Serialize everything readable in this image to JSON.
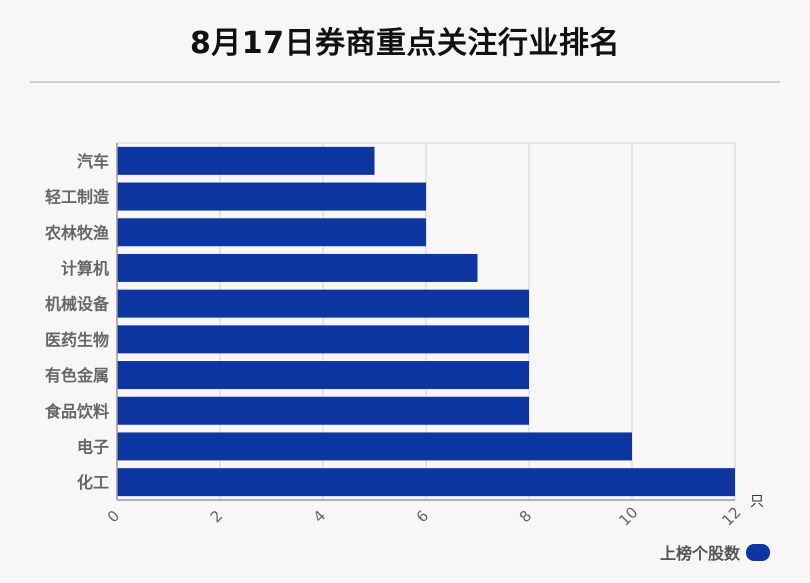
{
  "title": "8月17日券商重点关注行业排名",
  "colors": {
    "bar": "#0d36a0",
    "grid": "#d4d4d4",
    "axis": "#999999",
    "tick_text": "#666666",
    "category_text": "#666666"
  },
  "chart_data": {
    "type": "bar",
    "orientation": "horizontal",
    "categories": [
      "汽车",
      "轻工制造",
      "农林牧渔",
      "计算机",
      "机械设备",
      "医药生物",
      "有色金属",
      "食品饮料",
      "电子",
      "化工"
    ],
    "series": [
      {
        "name": "上榜个股数",
        "values": [
          5,
          6,
          6,
          7,
          8,
          8,
          8,
          8,
          10,
          12
        ]
      }
    ],
    "x_ticks": [
      "0",
      "2",
      "4",
      "6",
      "8",
      "10",
      "12"
    ],
    "xlim": [
      0,
      12
    ],
    "x_unit": "只",
    "grid": true,
    "legend": "bottom-right"
  }
}
